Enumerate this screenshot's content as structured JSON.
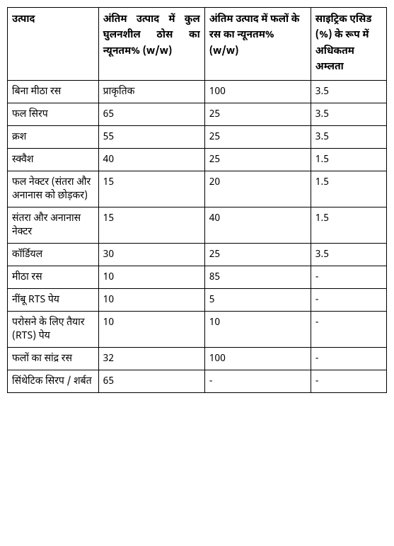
{
  "table": {
    "columns": [
      "उत्पाद",
      "अंतिम उत्पाद में कुल घुलनशील ठोस का न्यूनतम% (w/w)",
      "अंतिम उत्पाद में फलों के रस का न्यूनतम% (w/w)",
      "साइट्रिक एसिड (%) के रूप में अधिकतम अम्लता"
    ],
    "rows": [
      [
        "बिना मीठा रस",
        "प्राकृतिक",
        "100",
        "3.5"
      ],
      [
        "फल सिरप",
        "65",
        "25",
        "3.5"
      ],
      [
        "क्रश",
        "55",
        "25",
        "3.5"
      ],
      [
        "स्क्वैश",
        "40",
        "25",
        "1.5"
      ],
      [
        "फल नेक्टर (संतरा और अनानास को छोड़कर)",
        "15",
        "20",
        "1.5"
      ],
      [
        "संतरा और अनानास नेक्टर",
        "15",
        "40",
        "1.5"
      ],
      [
        "कॉर्डियल",
        "30",
        "25",
        "3.5"
      ],
      [
        "मीठा रस",
        "10",
        "85",
        "-"
      ],
      [
        "नींबू RTS पेय",
        "10",
        "5",
        "-"
      ],
      [
        "परोसने के लिए तैयार (RTS) पेय",
        "10",
        "10",
        "-"
      ],
      [
        "फलों का सांद्र रस",
        "32",
        "100",
        "-"
      ],
      [
        "सिंथेटिक सिरप / शर्बत",
        "65",
        "-",
        "-"
      ]
    ],
    "col_classes": [
      "col0",
      "col1",
      "col2",
      "col3"
    ]
  }
}
